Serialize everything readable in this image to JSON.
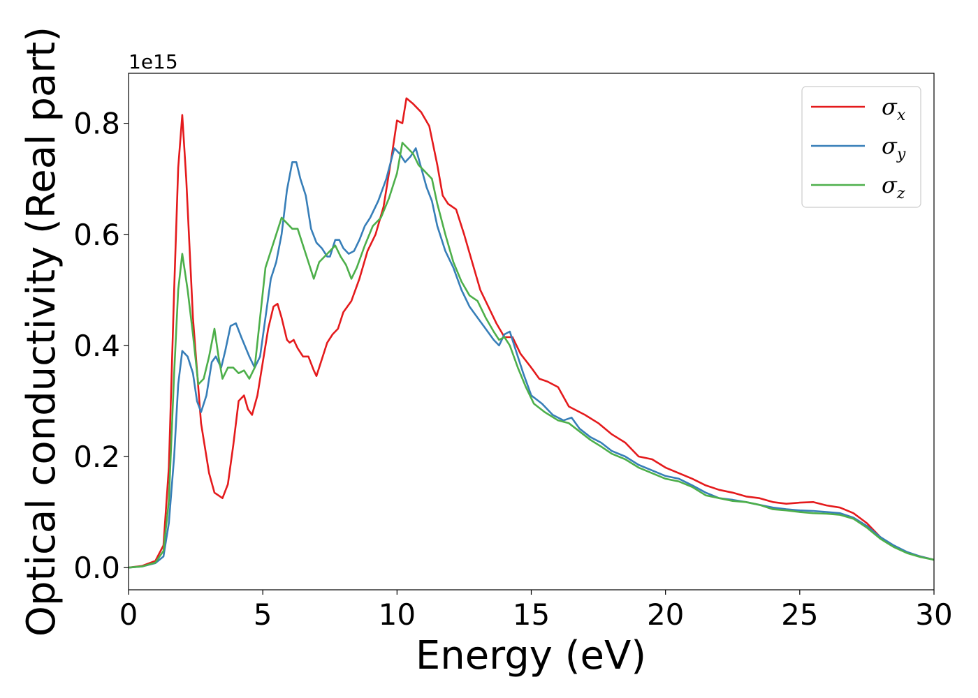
{
  "chart_data": {
    "type": "line",
    "title": "",
    "xlabel": "Energy (eV)",
    "ylabel": "Optical conductivity (Real part)",
    "y_offset_text": "1e15",
    "xlim": [
      0,
      30
    ],
    "ylim": [
      -0.04,
      0.89
    ],
    "xticks": [
      0,
      5,
      10,
      15,
      20,
      25,
      30
    ],
    "xtick_labels": [
      "0",
      "5",
      "10",
      "15",
      "20",
      "25",
      "30"
    ],
    "yticks": [
      0.0,
      0.2,
      0.4,
      0.6,
      0.8
    ],
    "ytick_labels": [
      "0.0",
      "0.2",
      "0.4",
      "0.6",
      "0.8"
    ],
    "grid": false,
    "legend_position": "top-right",
    "series": [
      {
        "name": "σx",
        "symbol": "σ",
        "subscript": "x",
        "color": "#e41a1c",
        "points": [
          [
            0,
            0
          ],
          [
            0.5,
            0.003
          ],
          [
            1.0,
            0.012
          ],
          [
            1.3,
            0.04
          ],
          [
            1.5,
            0.18
          ],
          [
            1.7,
            0.5
          ],
          [
            1.85,
            0.72
          ],
          [
            2.0,
            0.815
          ],
          [
            2.15,
            0.7
          ],
          [
            2.4,
            0.45
          ],
          [
            2.7,
            0.26
          ],
          [
            3.0,
            0.17
          ],
          [
            3.2,
            0.135
          ],
          [
            3.5,
            0.125
          ],
          [
            3.7,
            0.15
          ],
          [
            3.9,
            0.22
          ],
          [
            4.1,
            0.3
          ],
          [
            4.3,
            0.31
          ],
          [
            4.45,
            0.285
          ],
          [
            4.6,
            0.275
          ],
          [
            4.8,
            0.31
          ],
          [
            5.0,
            0.37
          ],
          [
            5.2,
            0.43
          ],
          [
            5.4,
            0.47
          ],
          [
            5.55,
            0.475
          ],
          [
            5.7,
            0.45
          ],
          [
            5.9,
            0.41
          ],
          [
            6.0,
            0.405
          ],
          [
            6.15,
            0.41
          ],
          [
            6.3,
            0.395
          ],
          [
            6.5,
            0.38
          ],
          [
            6.7,
            0.38
          ],
          [
            6.9,
            0.355
          ],
          [
            7.0,
            0.345
          ],
          [
            7.2,
            0.375
          ],
          [
            7.4,
            0.405
          ],
          [
            7.6,
            0.42
          ],
          [
            7.8,
            0.43
          ],
          [
            8.0,
            0.46
          ],
          [
            8.3,
            0.48
          ],
          [
            8.6,
            0.52
          ],
          [
            8.9,
            0.57
          ],
          [
            9.2,
            0.6
          ],
          [
            9.5,
            0.65
          ],
          [
            9.8,
            0.74
          ],
          [
            10.0,
            0.805
          ],
          [
            10.2,
            0.8
          ],
          [
            10.35,
            0.845
          ],
          [
            10.6,
            0.835
          ],
          [
            10.9,
            0.82
          ],
          [
            11.2,
            0.795
          ],
          [
            11.5,
            0.725
          ],
          [
            11.7,
            0.67
          ],
          [
            11.9,
            0.655
          ],
          [
            12.2,
            0.645
          ],
          [
            12.5,
            0.6
          ],
          [
            12.8,
            0.55
          ],
          [
            13.1,
            0.5
          ],
          [
            13.4,
            0.47
          ],
          [
            13.7,
            0.44
          ],
          [
            14.0,
            0.415
          ],
          [
            14.3,
            0.415
          ],
          [
            14.6,
            0.385
          ],
          [
            15.0,
            0.36
          ],
          [
            15.3,
            0.34
          ],
          [
            15.6,
            0.335
          ],
          [
            16.0,
            0.325
          ],
          [
            16.4,
            0.29
          ],
          [
            17.0,
            0.275
          ],
          [
            17.5,
            0.26
          ],
          [
            18.0,
            0.24
          ],
          [
            18.5,
            0.225
          ],
          [
            19.0,
            0.2
          ],
          [
            19.5,
            0.195
          ],
          [
            20.0,
            0.18
          ],
          [
            20.5,
            0.17
          ],
          [
            21.0,
            0.16
          ],
          [
            21.5,
            0.148
          ],
          [
            22.0,
            0.14
          ],
          [
            22.5,
            0.135
          ],
          [
            23.0,
            0.128
          ],
          [
            23.5,
            0.125
          ],
          [
            24.0,
            0.118
          ],
          [
            24.5,
            0.115
          ],
          [
            25.0,
            0.117
          ],
          [
            25.5,
            0.118
          ],
          [
            26.0,
            0.112
          ],
          [
            26.5,
            0.108
          ],
          [
            27.0,
            0.098
          ],
          [
            27.5,
            0.08
          ],
          [
            28.0,
            0.055
          ],
          [
            28.5,
            0.038
          ],
          [
            29.0,
            0.027
          ],
          [
            29.5,
            0.02
          ],
          [
            30.0,
            0.014
          ]
        ]
      },
      {
        "name": "σy",
        "symbol": "σ",
        "subscript": "y",
        "color": "#377eb8",
        "points": [
          [
            0,
            0
          ],
          [
            0.5,
            0.002
          ],
          [
            1.0,
            0.008
          ],
          [
            1.3,
            0.02
          ],
          [
            1.5,
            0.08
          ],
          [
            1.7,
            0.2
          ],
          [
            1.85,
            0.33
          ],
          [
            2.0,
            0.39
          ],
          [
            2.2,
            0.38
          ],
          [
            2.4,
            0.35
          ],
          [
            2.55,
            0.3
          ],
          [
            2.7,
            0.28
          ],
          [
            2.9,
            0.31
          ],
          [
            3.1,
            0.37
          ],
          [
            3.25,
            0.38
          ],
          [
            3.45,
            0.36
          ],
          [
            3.6,
            0.39
          ],
          [
            3.8,
            0.435
          ],
          [
            4.0,
            0.44
          ],
          [
            4.2,
            0.415
          ],
          [
            4.5,
            0.38
          ],
          [
            4.7,
            0.36
          ],
          [
            4.9,
            0.38
          ],
          [
            5.1,
            0.45
          ],
          [
            5.3,
            0.52
          ],
          [
            5.5,
            0.55
          ],
          [
            5.7,
            0.6
          ],
          [
            5.9,
            0.68
          ],
          [
            6.1,
            0.73
          ],
          [
            6.25,
            0.73
          ],
          [
            6.4,
            0.7
          ],
          [
            6.6,
            0.67
          ],
          [
            6.8,
            0.61
          ],
          [
            7.0,
            0.585
          ],
          [
            7.2,
            0.575
          ],
          [
            7.4,
            0.56
          ],
          [
            7.5,
            0.56
          ],
          [
            7.7,
            0.59
          ],
          [
            7.85,
            0.59
          ],
          [
            8.0,
            0.575
          ],
          [
            8.2,
            0.565
          ],
          [
            8.4,
            0.57
          ],
          [
            8.6,
            0.59
          ],
          [
            8.8,
            0.615
          ],
          [
            9.0,
            0.63
          ],
          [
            9.3,
            0.66
          ],
          [
            9.6,
            0.7
          ],
          [
            9.9,
            0.755
          ],
          [
            10.1,
            0.745
          ],
          [
            10.3,
            0.73
          ],
          [
            10.5,
            0.74
          ],
          [
            10.7,
            0.755
          ],
          [
            10.9,
            0.72
          ],
          [
            11.1,
            0.685
          ],
          [
            11.3,
            0.66
          ],
          [
            11.5,
            0.615
          ],
          [
            11.8,
            0.57
          ],
          [
            12.1,
            0.54
          ],
          [
            12.4,
            0.5
          ],
          [
            12.7,
            0.47
          ],
          [
            13.0,
            0.45
          ],
          [
            13.3,
            0.43
          ],
          [
            13.6,
            0.41
          ],
          [
            13.8,
            0.4
          ],
          [
            14.0,
            0.42
          ],
          [
            14.2,
            0.425
          ],
          [
            14.4,
            0.395
          ],
          [
            14.7,
            0.35
          ],
          [
            15.0,
            0.31
          ],
          [
            15.4,
            0.295
          ],
          [
            15.8,
            0.275
          ],
          [
            16.2,
            0.265
          ],
          [
            16.5,
            0.27
          ],
          [
            16.8,
            0.25
          ],
          [
            17.2,
            0.235
          ],
          [
            17.6,
            0.225
          ],
          [
            18.0,
            0.21
          ],
          [
            18.5,
            0.2
          ],
          [
            19.0,
            0.185
          ],
          [
            19.5,
            0.175
          ],
          [
            20.0,
            0.165
          ],
          [
            20.5,
            0.16
          ],
          [
            21.0,
            0.148
          ],
          [
            21.5,
            0.135
          ],
          [
            22.0,
            0.125
          ],
          [
            22.5,
            0.122
          ],
          [
            23.0,
            0.118
          ],
          [
            23.5,
            0.113
          ],
          [
            24.0,
            0.108
          ],
          [
            24.5,
            0.105
          ],
          [
            25.0,
            0.103
          ],
          [
            25.5,
            0.102
          ],
          [
            26.0,
            0.1
          ],
          [
            26.5,
            0.098
          ],
          [
            27.0,
            0.09
          ],
          [
            27.5,
            0.075
          ],
          [
            28.0,
            0.055
          ],
          [
            28.5,
            0.04
          ],
          [
            29.0,
            0.028
          ],
          [
            29.5,
            0.02
          ],
          [
            30.0,
            0.014
          ]
        ]
      },
      {
        "name": "σz",
        "symbol": "σ",
        "subscript": "z",
        "color": "#4daf4a",
        "points": [
          [
            0,
            0
          ],
          [
            0.5,
            0.002
          ],
          [
            1.0,
            0.009
          ],
          [
            1.3,
            0.03
          ],
          [
            1.5,
            0.12
          ],
          [
            1.7,
            0.35
          ],
          [
            1.85,
            0.5
          ],
          [
            2.0,
            0.565
          ],
          [
            2.2,
            0.5
          ],
          [
            2.4,
            0.42
          ],
          [
            2.6,
            0.33
          ],
          [
            2.8,
            0.34
          ],
          [
            3.0,
            0.38
          ],
          [
            3.2,
            0.43
          ],
          [
            3.35,
            0.38
          ],
          [
            3.5,
            0.34
          ],
          [
            3.7,
            0.36
          ],
          [
            3.9,
            0.36
          ],
          [
            4.1,
            0.35
          ],
          [
            4.3,
            0.355
          ],
          [
            4.5,
            0.34
          ],
          [
            4.7,
            0.36
          ],
          [
            4.9,
            0.45
          ],
          [
            5.1,
            0.54
          ],
          [
            5.3,
            0.57
          ],
          [
            5.5,
            0.6
          ],
          [
            5.7,
            0.63
          ],
          [
            5.9,
            0.62
          ],
          [
            6.1,
            0.61
          ],
          [
            6.3,
            0.61
          ],
          [
            6.5,
            0.58
          ],
          [
            6.7,
            0.55
          ],
          [
            6.9,
            0.52
          ],
          [
            7.1,
            0.55
          ],
          [
            7.3,
            0.56
          ],
          [
            7.5,
            0.57
          ],
          [
            7.7,
            0.58
          ],
          [
            7.9,
            0.56
          ],
          [
            8.1,
            0.545
          ],
          [
            8.3,
            0.52
          ],
          [
            8.5,
            0.54
          ],
          [
            8.8,
            0.58
          ],
          [
            9.1,
            0.615
          ],
          [
            9.4,
            0.63
          ],
          [
            9.7,
            0.665
          ],
          [
            10.0,
            0.71
          ],
          [
            10.2,
            0.765
          ],
          [
            10.4,
            0.755
          ],
          [
            10.6,
            0.745
          ],
          [
            10.8,
            0.725
          ],
          [
            11.0,
            0.715
          ],
          [
            11.3,
            0.7
          ],
          [
            11.5,
            0.655
          ],
          [
            11.8,
            0.6
          ],
          [
            12.1,
            0.55
          ],
          [
            12.4,
            0.515
          ],
          [
            12.7,
            0.49
          ],
          [
            13.0,
            0.48
          ],
          [
            13.3,
            0.45
          ],
          [
            13.6,
            0.425
          ],
          [
            13.8,
            0.41
          ],
          [
            14.0,
            0.415
          ],
          [
            14.2,
            0.4
          ],
          [
            14.5,
            0.36
          ],
          [
            14.8,
            0.325
          ],
          [
            15.1,
            0.295
          ],
          [
            15.5,
            0.28
          ],
          [
            16.0,
            0.265
          ],
          [
            16.4,
            0.26
          ],
          [
            16.8,
            0.245
          ],
          [
            17.2,
            0.23
          ],
          [
            17.6,
            0.218
          ],
          [
            18.0,
            0.205
          ],
          [
            18.5,
            0.195
          ],
          [
            19.0,
            0.18
          ],
          [
            19.5,
            0.17
          ],
          [
            20.0,
            0.16
          ],
          [
            20.5,
            0.155
          ],
          [
            21.0,
            0.145
          ],
          [
            21.5,
            0.13
          ],
          [
            22.0,
            0.125
          ],
          [
            22.5,
            0.12
          ],
          [
            23.0,
            0.118
          ],
          [
            23.5,
            0.113
          ],
          [
            24.0,
            0.105
          ],
          [
            24.5,
            0.103
          ],
          [
            25.0,
            0.1
          ],
          [
            25.5,
            0.098
          ],
          [
            26.0,
            0.097
          ],
          [
            26.5,
            0.095
          ],
          [
            27.0,
            0.088
          ],
          [
            27.5,
            0.072
          ],
          [
            28.0,
            0.052
          ],
          [
            28.5,
            0.037
          ],
          [
            29.0,
            0.026
          ],
          [
            29.5,
            0.019
          ],
          [
            30.0,
            0.014
          ]
        ]
      }
    ]
  }
}
